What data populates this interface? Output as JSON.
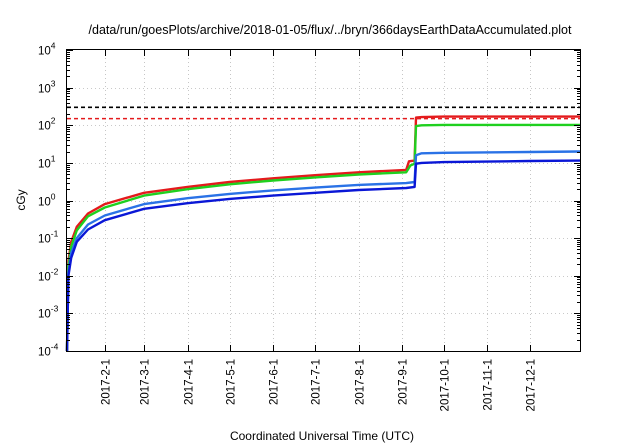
{
  "chart_data": {
    "type": "line",
    "title": "/data/run/goesPlots/archive/2018-01-05/flux/../bryn/366daysEarthDataAccumulated.plot",
    "xlabel": "Coordinated Universal Time (UTC)",
    "ylabel": "cGy",
    "yscale": "log",
    "ylim": [
      0.0001,
      10000
    ],
    "xlim": [
      "2017-01-05",
      "2018-01-06"
    ],
    "grid": true,
    "y_ticks": [
      {
        "value": 0.0001,
        "base": "10",
        "exp": "-4"
      },
      {
        "value": 0.001,
        "base": "10",
        "exp": "-3"
      },
      {
        "value": 0.01,
        "base": "10",
        "exp": "-2"
      },
      {
        "value": 0.1,
        "base": "10",
        "exp": "-1"
      },
      {
        "value": 1,
        "base": "10",
        "exp": "0"
      },
      {
        "value": 10,
        "base": "10",
        "exp": "1"
      },
      {
        "value": 100,
        "base": "10",
        "exp": "2"
      },
      {
        "value": 1000,
        "base": "10",
        "exp": "3"
      },
      {
        "value": 10000,
        "base": "10",
        "exp": "4"
      }
    ],
    "x_ticks": [
      "2017-2-1",
      "2017-3-1",
      "2017-4-1",
      "2017-5-1",
      "2017-6-1",
      "2017-7-1",
      "2017-8-1",
      "2017-9-1",
      "2017-10-1",
      "2017-11-1",
      "2017-12-1"
    ],
    "reference_lines": [
      {
        "y": 300,
        "color": "#000000",
        "style": "dashed"
      },
      {
        "y": 150,
        "color": "#e41a1c",
        "style": "dashed"
      }
    ],
    "series": [
      {
        "color": "#e41a1c",
        "points": [
          [
            "2017-01-05",
            0.0001
          ],
          [
            "2017-01-06",
            0.025
          ],
          [
            "2017-01-08",
            0.08
          ],
          [
            "2017-01-12",
            0.2
          ],
          [
            "2017-01-20",
            0.45
          ],
          [
            "2017-02-01",
            0.8
          ],
          [
            "2017-03-01",
            1.6
          ],
          [
            "2017-04-01",
            2.3
          ],
          [
            "2017-05-01",
            3.1
          ],
          [
            "2017-06-01",
            3.9
          ],
          [
            "2017-07-01",
            4.7
          ],
          [
            "2017-08-01",
            5.6
          ],
          [
            "2017-09-04",
            6.5
          ],
          [
            "2017-09-06",
            11
          ],
          [
            "2017-09-10",
            11.5
          ],
          [
            "2017-09-11",
            160
          ],
          [
            "2017-09-15",
            165
          ],
          [
            "2017-10-01",
            170
          ],
          [
            "2017-12-01",
            170
          ],
          [
            "2018-01-06",
            170
          ]
        ]
      },
      {
        "color": "#1fd01f",
        "points": [
          [
            "2017-01-05",
            0.0001
          ],
          [
            "2017-01-06",
            0.018
          ],
          [
            "2017-01-08",
            0.06
          ],
          [
            "2017-01-12",
            0.16
          ],
          [
            "2017-01-20",
            0.38
          ],
          [
            "2017-02-01",
            0.65
          ],
          [
            "2017-03-01",
            1.35
          ],
          [
            "2017-04-01",
            2.0
          ],
          [
            "2017-05-01",
            2.7
          ],
          [
            "2017-06-01",
            3.4
          ],
          [
            "2017-07-01",
            4.1
          ],
          [
            "2017-08-01",
            4.9
          ],
          [
            "2017-09-04",
            5.6
          ],
          [
            "2017-09-07",
            8.5
          ],
          [
            "2017-09-10",
            9.5
          ],
          [
            "2017-09-11",
            95
          ],
          [
            "2017-09-15",
            100
          ],
          [
            "2017-10-01",
            102
          ],
          [
            "2017-12-01",
            102
          ],
          [
            "2018-01-06",
            102
          ]
        ]
      },
      {
        "color": "#2a72e6",
        "points": [
          [
            "2017-01-05",
            0.0001
          ],
          [
            "2017-01-06",
            0.012
          ],
          [
            "2017-01-08",
            0.04
          ],
          [
            "2017-01-12",
            0.1
          ],
          [
            "2017-01-20",
            0.23
          ],
          [
            "2017-02-01",
            0.4
          ],
          [
            "2017-03-01",
            0.8
          ],
          [
            "2017-04-01",
            1.15
          ],
          [
            "2017-05-01",
            1.5
          ],
          [
            "2017-06-01",
            1.85
          ],
          [
            "2017-07-01",
            2.2
          ],
          [
            "2017-08-01",
            2.6
          ],
          [
            "2017-09-04",
            2.9
          ],
          [
            "2017-09-10",
            3.1
          ],
          [
            "2017-09-11",
            16
          ],
          [
            "2017-09-15",
            18
          ],
          [
            "2017-10-01",
            18.5
          ],
          [
            "2017-12-01",
            19.5
          ],
          [
            "2018-01-06",
            20
          ]
        ]
      },
      {
        "color": "#0a17d6",
        "points": [
          [
            "2017-01-05",
            0.0001
          ],
          [
            "2017-01-06",
            0.01
          ],
          [
            "2017-01-08",
            0.03
          ],
          [
            "2017-01-12",
            0.08
          ],
          [
            "2017-01-20",
            0.17
          ],
          [
            "2017-02-01",
            0.3
          ],
          [
            "2017-03-01",
            0.6
          ],
          [
            "2017-04-01",
            0.85
          ],
          [
            "2017-05-01",
            1.1
          ],
          [
            "2017-06-01",
            1.35
          ],
          [
            "2017-07-01",
            1.6
          ],
          [
            "2017-08-01",
            1.9
          ],
          [
            "2017-09-04",
            2.15
          ],
          [
            "2017-09-10",
            2.3
          ],
          [
            "2017-09-11",
            9.5
          ],
          [
            "2017-09-15",
            10
          ],
          [
            "2017-10-01",
            10.5
          ],
          [
            "2017-12-01",
            11.2
          ],
          [
            "2018-01-06",
            11.5
          ]
        ]
      }
    ]
  }
}
